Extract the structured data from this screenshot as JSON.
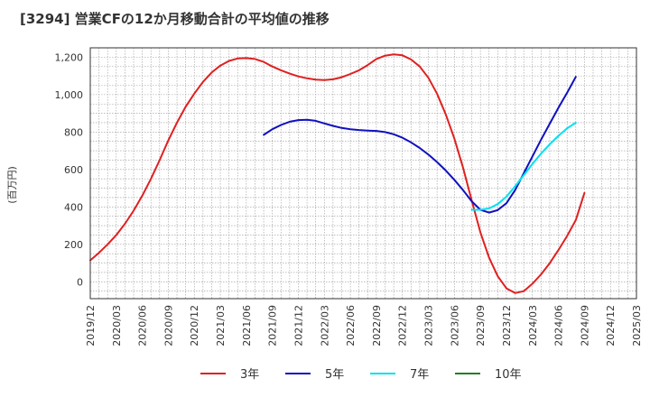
{
  "chart_data": {
    "type": "line",
    "title": "[3294]  営業CFの12か月移動合計の平均値の推移",
    "ylabel": "(百万円)",
    "xlabel": "",
    "ylim": [
      -90,
      1250
    ],
    "yticks": [
      0,
      200,
      400,
      600,
      800,
      1000,
      1200
    ],
    "ytick_labels": [
      "0",
      "200",
      "400",
      "600",
      "800",
      "1,000",
      "1,200"
    ],
    "x_categories": [
      "2019/12",
      "2020/03",
      "2020/06",
      "2020/09",
      "2020/12",
      "2021/03",
      "2021/06",
      "2021/09",
      "2021/12",
      "2022/03",
      "2022/06",
      "2022/09",
      "2022/12",
      "2023/03",
      "2023/06",
      "2023/09",
      "2023/12",
      "2024/03",
      "2024/06",
      "2024/09",
      "2024/12",
      "2025/03"
    ],
    "grid": true,
    "legend_position": "bottom",
    "series": [
      {
        "name": "3年",
        "color": "#e02020",
        "points": [
          [
            "2019/12",
            115
          ],
          [
            "2020/01",
            155
          ],
          [
            "2020/02",
            200
          ],
          [
            "2020/03",
            250
          ],
          [
            "2020/04",
            310
          ],
          [
            "2020/05",
            380
          ],
          [
            "2020/06",
            460
          ],
          [
            "2020/07",
            550
          ],
          [
            "2020/08",
            650
          ],
          [
            "2020/09",
            755
          ],
          [
            "2020/10",
            850
          ],
          [
            "2020/11",
            935
          ],
          [
            "2020/12",
            1005
          ],
          [
            "2021/01",
            1068
          ],
          [
            "2021/02",
            1118
          ],
          [
            "2021/03",
            1155
          ],
          [
            "2021/04",
            1180
          ],
          [
            "2021/05",
            1193
          ],
          [
            "2021/06",
            1195
          ],
          [
            "2021/07",
            1190
          ],
          [
            "2021/08",
            1175
          ],
          [
            "2021/09",
            1150
          ],
          [
            "2021/10",
            1130
          ],
          [
            "2021/11",
            1112
          ],
          [
            "2021/12",
            1097
          ],
          [
            "2022/01",
            1087
          ],
          [
            "2022/02",
            1080
          ],
          [
            "2022/03",
            1078
          ],
          [
            "2022/04",
            1082
          ],
          [
            "2022/05",
            1093
          ],
          [
            "2022/06",
            1110
          ],
          [
            "2022/07",
            1130
          ],
          [
            "2022/08",
            1158
          ],
          [
            "2022/09",
            1190
          ],
          [
            "2022/10",
            1208
          ],
          [
            "2022/11",
            1215
          ],
          [
            "2022/12",
            1210
          ],
          [
            "2023/01",
            1188
          ],
          [
            "2023/02",
            1150
          ],
          [
            "2023/03",
            1090
          ],
          [
            "2023/04",
            1005
          ],
          [
            "2023/05",
            895
          ],
          [
            "2023/06",
            765
          ],
          [
            "2023/07",
            610
          ],
          [
            "2023/08",
            435
          ],
          [
            "2023/09",
            265
          ],
          [
            "2023/10",
            130
          ],
          [
            "2023/11",
            30
          ],
          [
            "2023/12",
            -35
          ],
          [
            "2024/01",
            -60
          ],
          [
            "2024/02",
            -50
          ],
          [
            "2024/03",
            -10
          ],
          [
            "2024/04",
            40
          ],
          [
            "2024/05",
            100
          ],
          [
            "2024/06",
            170
          ],
          [
            "2024/07",
            245
          ],
          [
            "2024/08",
            330
          ],
          [
            "2024/09",
            475
          ]
        ]
      },
      {
        "name": "5年",
        "color": "#1010c0",
        "points": [
          [
            "2021/08",
            785
          ],
          [
            "2021/09",
            815
          ],
          [
            "2021/10",
            838
          ],
          [
            "2021/11",
            855
          ],
          [
            "2021/12",
            864
          ],
          [
            "2022/01",
            866
          ],
          [
            "2022/02",
            860
          ],
          [
            "2022/03",
            846
          ],
          [
            "2022/04",
            833
          ],
          [
            "2022/05",
            822
          ],
          [
            "2022/06",
            815
          ],
          [
            "2022/07",
            811
          ],
          [
            "2022/08",
            808
          ],
          [
            "2022/09",
            806
          ],
          [
            "2022/10",
            800
          ],
          [
            "2022/11",
            788
          ],
          [
            "2022/12",
            770
          ],
          [
            "2023/01",
            745
          ],
          [
            "2023/02",
            715
          ],
          [
            "2023/03",
            680
          ],
          [
            "2023/04",
            640
          ],
          [
            "2023/05",
            595
          ],
          [
            "2023/06",
            545
          ],
          [
            "2023/07",
            490
          ],
          [
            "2023/08",
            430
          ],
          [
            "2023/09",
            385
          ],
          [
            "2023/10",
            370
          ],
          [
            "2023/11",
            383
          ],
          [
            "2023/12",
            420
          ],
          [
            "2024/01",
            490
          ],
          [
            "2024/02",
            580
          ],
          [
            "2024/03",
            670
          ],
          [
            "2024/04",
            760
          ],
          [
            "2024/05",
            845
          ],
          [
            "2024/06",
            930
          ],
          [
            "2024/07",
            1010
          ],
          [
            "2024/08",
            1095
          ]
        ]
      },
      {
        "name": "7年",
        "color": "#00e0f0",
        "points": [
          [
            "2023/08",
            385
          ],
          [
            "2023/09",
            385
          ],
          [
            "2023/10",
            392
          ],
          [
            "2023/11",
            415
          ],
          [
            "2023/12",
            455
          ],
          [
            "2024/01",
            510
          ],
          [
            "2024/02",
            570
          ],
          [
            "2024/03",
            630
          ],
          [
            "2024/04",
            685
          ],
          [
            "2024/05",
            735
          ],
          [
            "2024/06",
            780
          ],
          [
            "2024/07",
            820
          ],
          [
            "2024/08",
            850
          ]
        ]
      },
      {
        "name": "10年",
        "color": "#208020",
        "points": []
      }
    ]
  }
}
